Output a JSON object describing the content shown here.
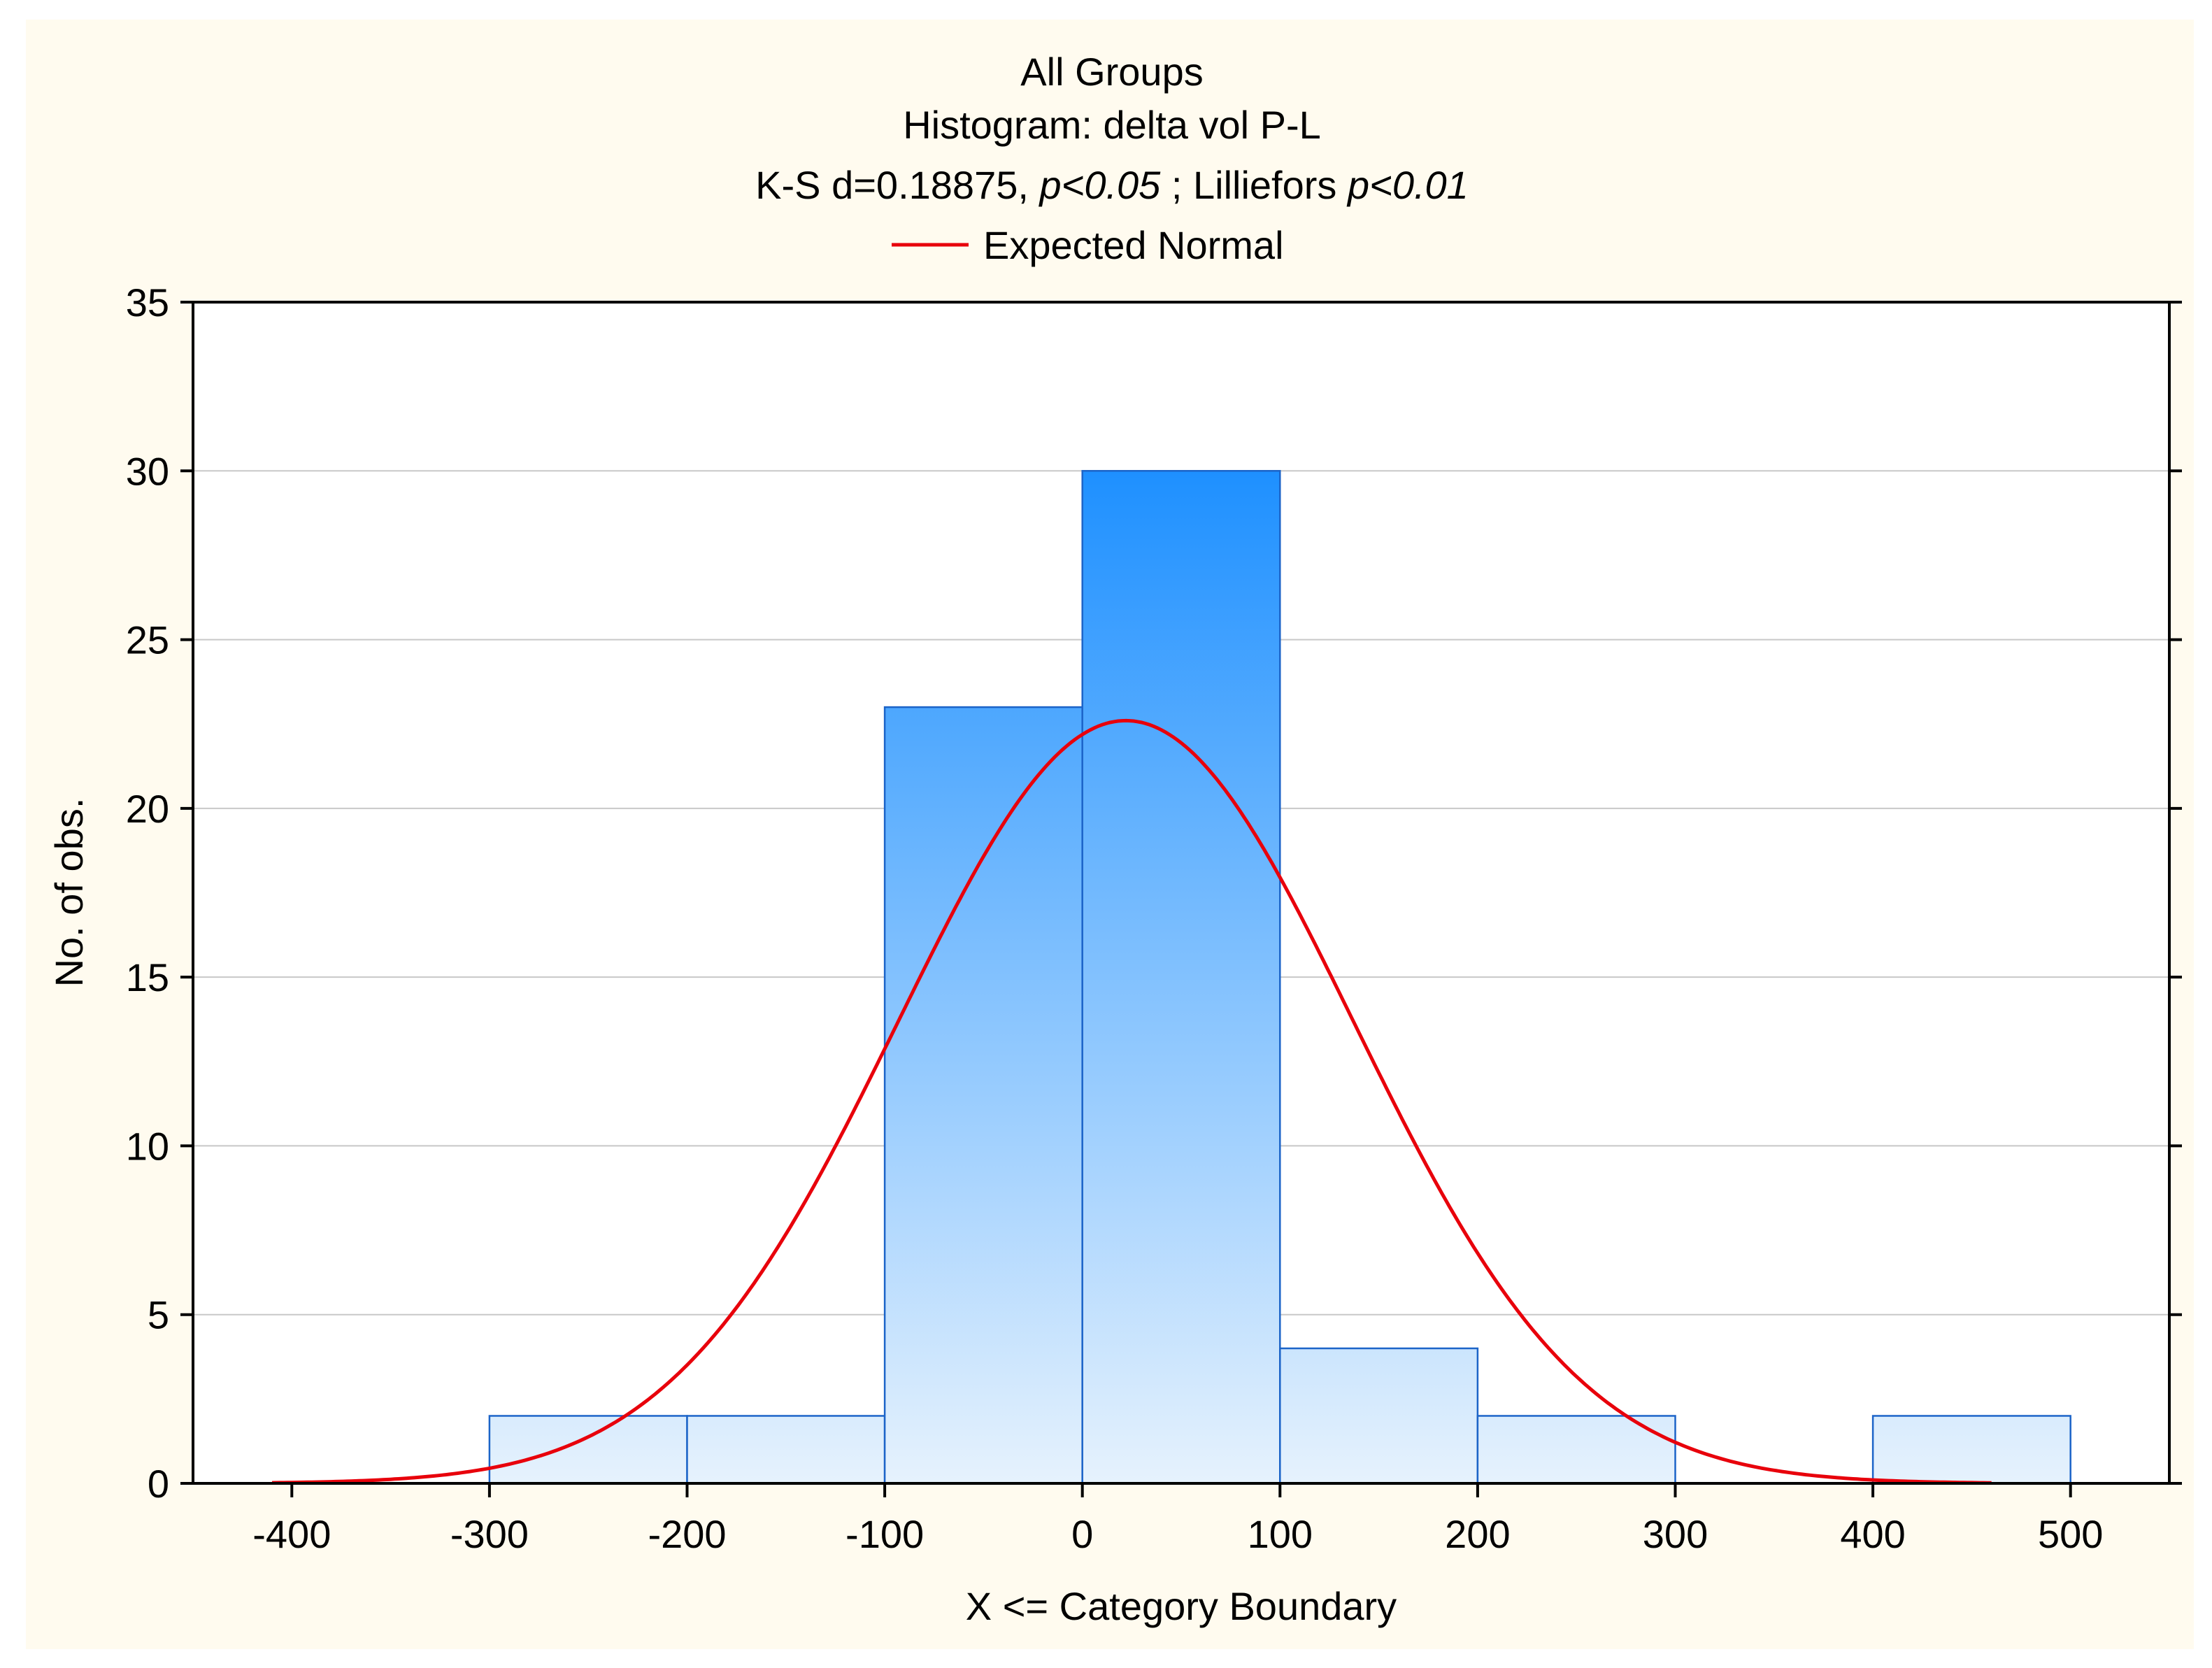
{
  "chart_data": {
    "type": "bar",
    "title_lines": [
      "All Groups",
      "Histogram: delta vol P-L"
    ],
    "stats": {
      "ks_prefix": "K-S d=0.18875, ",
      "ks_p": "p<0.05",
      "lillie_prefix": " ; Lilliefors ",
      "lillie_p": "p<0.01"
    },
    "legend": [
      {
        "name": "Expected Normal",
        "color": "#e8000b"
      }
    ],
    "xlabel": "X <= Category Boundary",
    "ylabel": "No. of obs.",
    "xlim": [
      -450,
      550
    ],
    "ylim": [
      0,
      35
    ],
    "x_ticks": [
      -400,
      -300,
      -200,
      -100,
      0,
      100,
      200,
      300,
      400,
      500
    ],
    "x_tick_labels": [
      "-400",
      "-300",
      "-200",
      "-100",
      "0",
      "100",
      "200",
      "300",
      "400",
      "500"
    ],
    "y_ticks": [
      0,
      5,
      10,
      15,
      20,
      25,
      30,
      35
    ],
    "y_tick_labels": [
      "0",
      "5",
      "10",
      "15",
      "20",
      "25",
      "30",
      "35"
    ],
    "bins": [
      {
        "x0": -300,
        "x1": -200,
        "count": 2
      },
      {
        "x0": -200,
        "x1": -100,
        "count": 2
      },
      {
        "x0": -100,
        "x1": 0,
        "count": 23
      },
      {
        "x0": 0,
        "x1": 100,
        "count": 30
      },
      {
        "x0": 100,
        "x1": 200,
        "count": 4
      },
      {
        "x0": 200,
        "x1": 300,
        "count": 2
      },
      {
        "x0": 400,
        "x1": 500,
        "count": 2
      }
    ],
    "expected_normal": {
      "mean": 22,
      "sd": 115,
      "peak": 22.6,
      "x_range": [
        -410,
        460
      ]
    },
    "colors": {
      "bar_top": "#1e90ff",
      "bar_bottom": "#e6f2fd",
      "bar_stroke": "#1c64c8",
      "curve": "#e8000b",
      "grid": "#c8c8c8"
    }
  }
}
